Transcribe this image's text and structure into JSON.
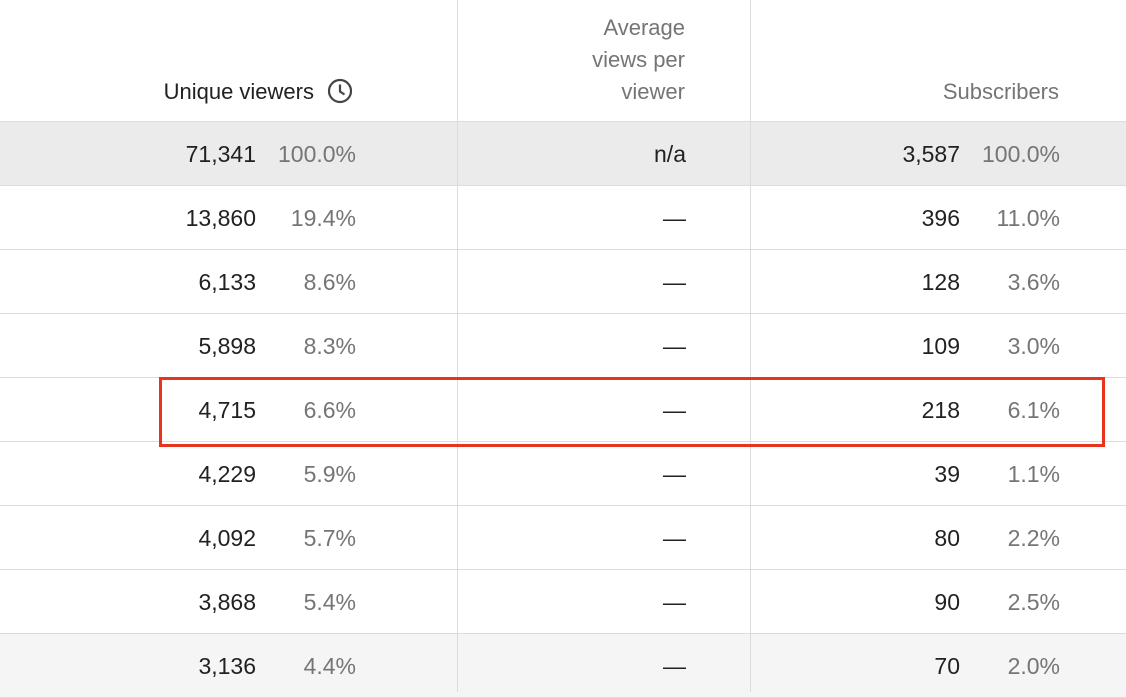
{
  "table": {
    "header": [
      "Unique viewers",
      "Average views per viewer",
      "Subscribers"
    ],
    "rows": [
      [
        "71,341",
        "100.0%",
        "n/a",
        "3,587",
        "100.0%"
      ],
      [
        "13,860",
        "19.4%",
        "—",
        "396",
        "11.0%"
      ],
      [
        "6,133",
        "8.6%",
        "—",
        "128",
        "3.6%"
      ],
      [
        "5,898",
        "8.3%",
        "—",
        "109",
        "3.0%"
      ],
      [
        "4,715",
        "6.6%",
        "—",
        "218",
        "6.1%"
      ],
      [
        "4,229",
        "5.9%",
        "—",
        "39",
        "1.1%"
      ],
      [
        "4,092",
        "5.7%",
        "—",
        "80",
        "2.2%"
      ],
      [
        "3,868",
        "5.4%",
        "—",
        "90",
        "2.5%"
      ],
      [
        "3,136",
        "4.4%",
        "—",
        "70",
        "2.0%"
      ]
    ]
  }
}
